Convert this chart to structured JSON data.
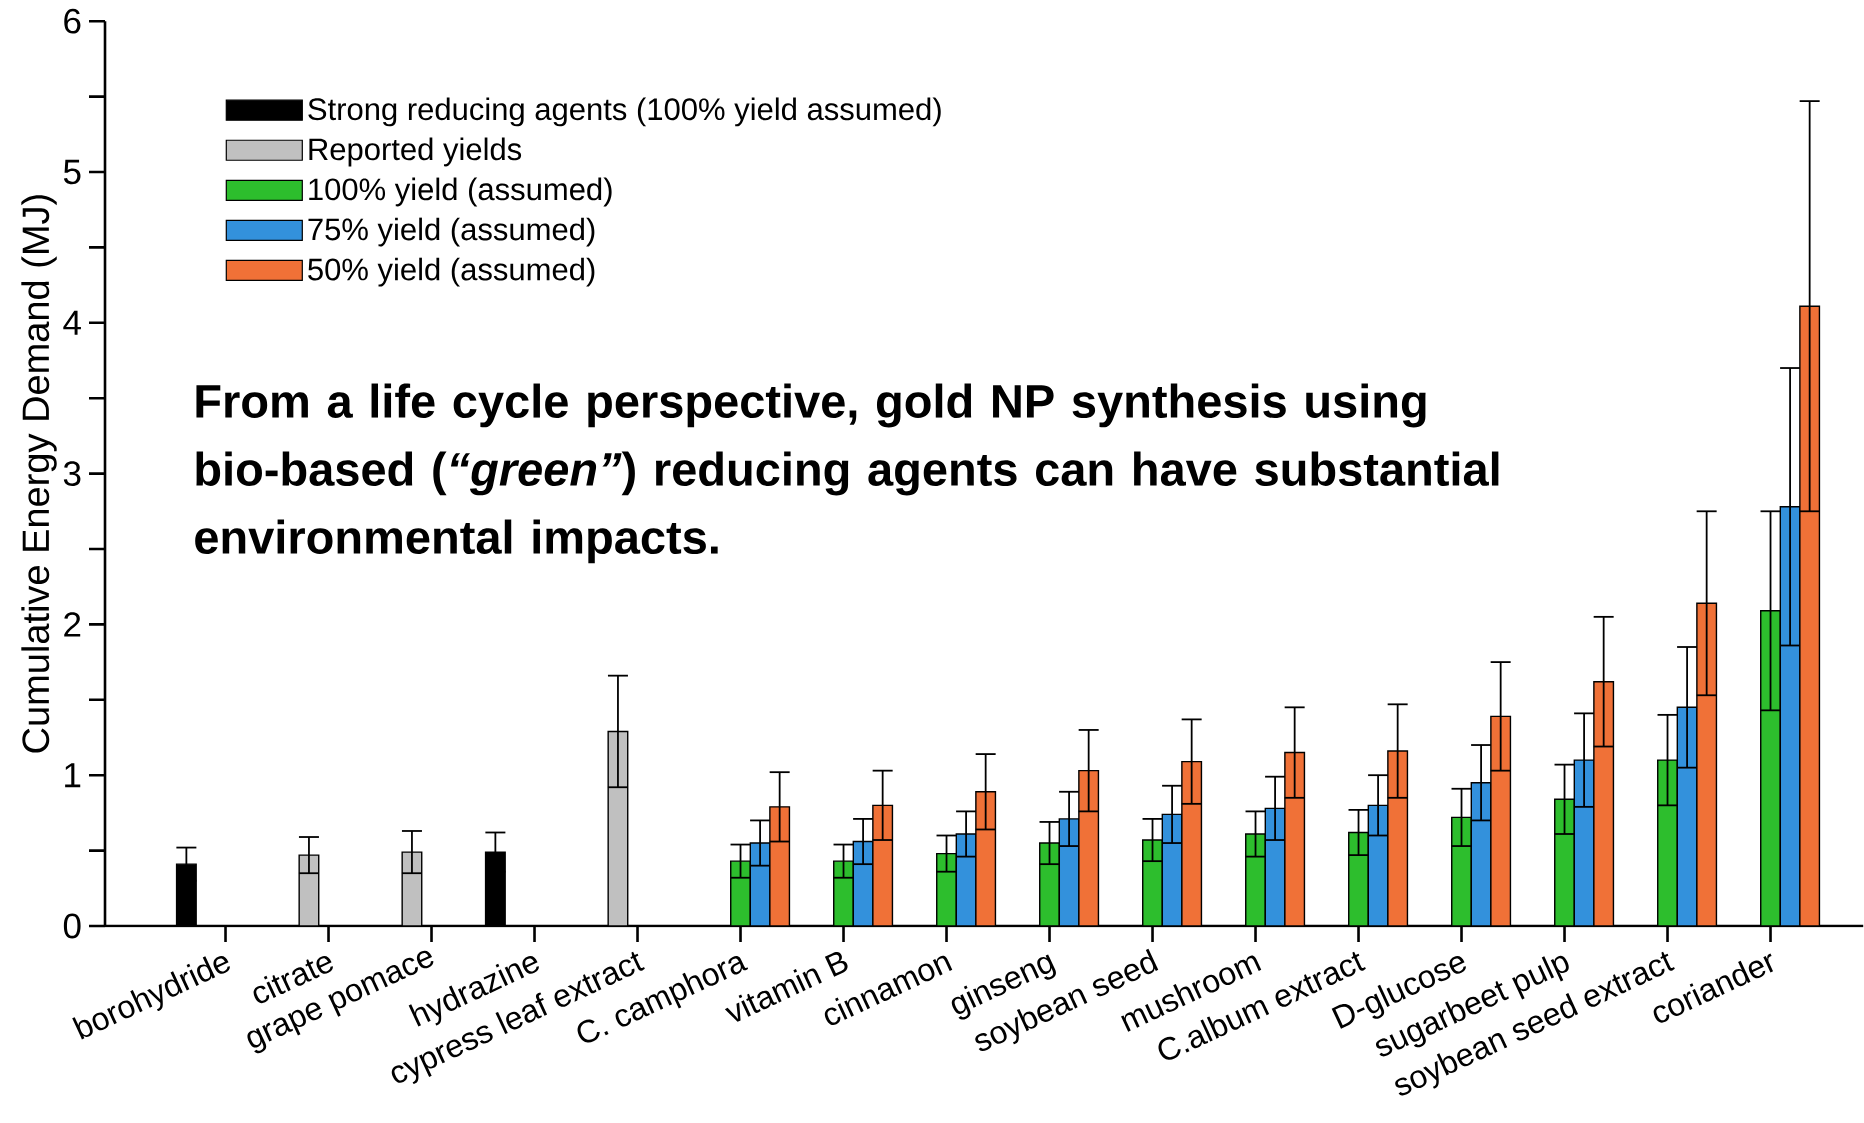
{
  "chart_data": {
    "type": "bar",
    "ylabel": "Cumulative Energy Demand (MJ)",
    "categories": [
      "borohydride",
      "citrate",
      "grape pomace",
      "hydrazine",
      "cypress leaf extract",
      "C. camphora",
      "vitamin B",
      "cinnamon",
      "ginseng",
      "soybean seed",
      "mushroom",
      "C.album extract",
      "D-glucose",
      "sugarbeet pulp",
      "soybean seed extract",
      "coriander"
    ],
    "series": [
      {
        "name": "Strong reducing agents (100% yield assumed)",
        "color": "#000000",
        "values": [
          0.41,
          null,
          null,
          0.49,
          null,
          null,
          null,
          null,
          null,
          null,
          null,
          null,
          null,
          null,
          null,
          null
        ],
        "errors": [
          0.11,
          null,
          null,
          0.13,
          null,
          null,
          null,
          null,
          null,
          null,
          null,
          null,
          null,
          null,
          null,
          null
        ]
      },
      {
        "name": "Reported yields",
        "color": "#c0c0c0",
        "values": [
          null,
          0.47,
          0.49,
          null,
          1.29,
          null,
          null,
          null,
          null,
          null,
          null,
          null,
          null,
          null,
          null,
          null
        ],
        "errors": [
          null,
          0.12,
          0.14,
          null,
          0.37,
          null,
          null,
          null,
          null,
          null,
          null,
          null,
          null,
          null,
          null,
          null
        ]
      },
      {
        "name": "100% yield (assumed)",
        "color": "#2dbe2d",
        "values": [
          null,
          null,
          null,
          null,
          null,
          0.43,
          0.43,
          0.48,
          0.55,
          0.57,
          0.61,
          0.62,
          0.72,
          0.84,
          1.1,
          2.09
        ],
        "errors": [
          null,
          null,
          null,
          null,
          null,
          0.11,
          0.11,
          0.12,
          0.14,
          0.14,
          0.15,
          0.15,
          0.19,
          0.23,
          0.3,
          0.66
        ]
      },
      {
        "name": "75% yield (assumed)",
        "color": "#3391dc",
        "values": [
          null,
          null,
          null,
          null,
          null,
          0.55,
          0.56,
          0.61,
          0.71,
          0.74,
          0.78,
          0.8,
          0.95,
          1.1,
          1.45,
          2.78
        ],
        "errors": [
          null,
          null,
          null,
          null,
          null,
          0.15,
          0.15,
          0.15,
          0.18,
          0.19,
          0.21,
          0.2,
          0.25,
          0.31,
          0.4,
          0.92
        ]
      },
      {
        "name": "50% yield (assumed)",
        "color": "#f07137",
        "values": [
          null,
          null,
          null,
          null,
          null,
          0.79,
          0.8,
          0.89,
          1.03,
          1.09,
          1.15,
          1.16,
          1.39,
          1.62,
          2.14,
          4.11
        ],
        "errors": [
          null,
          null,
          null,
          null,
          null,
          0.23,
          0.23,
          0.25,
          0.27,
          0.28,
          0.3,
          0.31,
          0.36,
          0.43,
          0.61,
          1.36
        ]
      }
    ],
    "ylim": [
      0,
      6
    ],
    "yticks": [
      0,
      {
        "value": 0.5,
        "label": null
      },
      1,
      {
        "value": 1.5,
        "label": null
      },
      2,
      {
        "value": 2.5,
        "label": null
      },
      3,
      {
        "value": 3.5,
        "label": null
      },
      4,
      {
        "value": 4.5,
        "label": null
      },
      5,
      {
        "value": 5.5,
        "label": null
      },
      6
    ],
    "legend": "top left",
    "annotations": [
      "From a life cycle perspective, gold NP synthesis using bio-based (*“green”*) reducing agents can have substantial environmental impacts."
    ]
  }
}
